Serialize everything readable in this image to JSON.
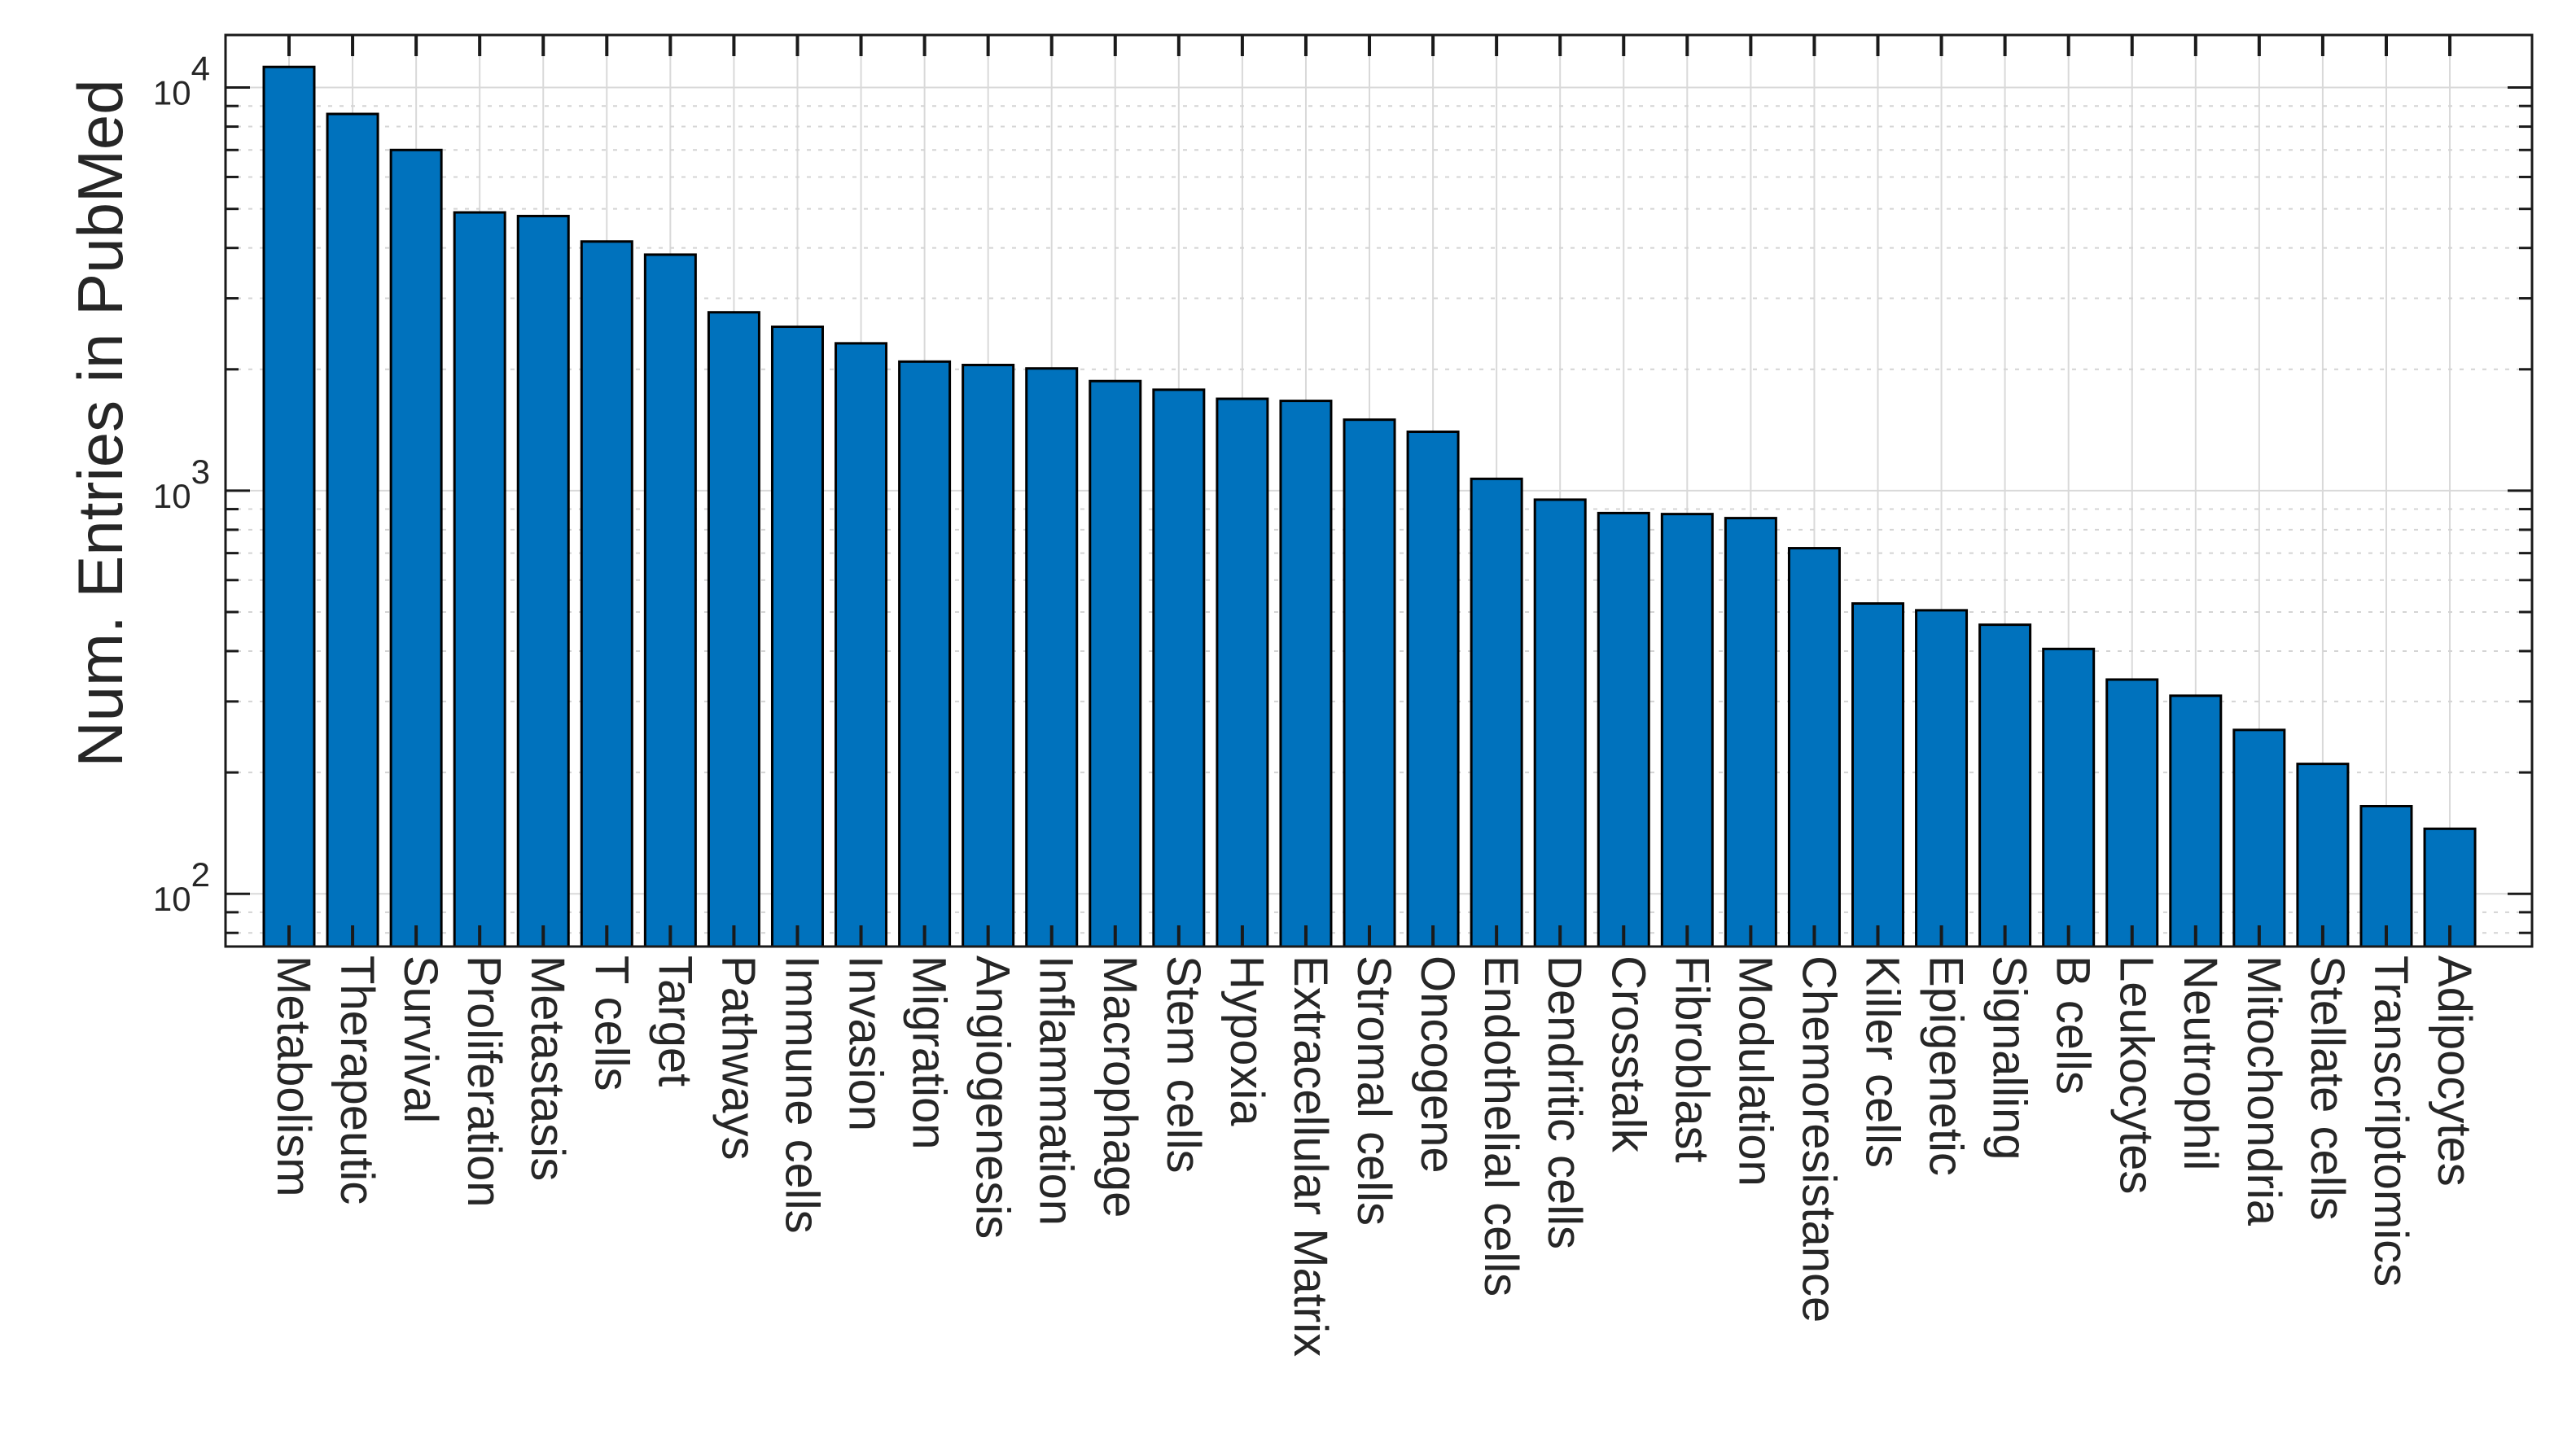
{
  "chart_data": {
    "type": "bar",
    "title": "",
    "xlabel": "",
    "ylabel": "Num. Entries in PubMed",
    "yscale": "log",
    "ylim": [
      74,
      13500
    ],
    "grid": "on",
    "legend": "none",
    "categories": [
      "Metabolism",
      "Therapeutic",
      "Survival",
      "Proliferation",
      "Metastasis",
      "T cells",
      "Target",
      "Pathways",
      "Immune cells",
      "Invasion",
      "Migration",
      "Angiogenesis",
      "Inflammation",
      "Macrophage",
      "Stem cells",
      "Hypoxia",
      "Extracellular Matrix",
      "Stromal cells",
      "Oncogene",
      "Endothelial cells",
      "Dendritic cells",
      "Crosstalk",
      "Fibroblast",
      "Modulation",
      "Chemoresistance",
      "Killer cells",
      "Epigenetic",
      "Signalling",
      "B cells",
      "Leukocytes",
      "Neutrophil",
      "Mitochondria",
      "Stellate cells",
      "Transcriptomics",
      "Adipocytes"
    ],
    "values": [
      11250,
      8600,
      7000,
      4900,
      4800,
      4150,
      3850,
      2770,
      2550,
      2320,
      2090,
      2050,
      2010,
      1870,
      1780,
      1690,
      1670,
      1500,
      1400,
      1070,
      950,
      880,
      875,
      855,
      720,
      525,
      505,
      465,
      405,
      340,
      310,
      255,
      210,
      165,
      145
    ],
    "yticks": [
      {
        "value": 100,
        "base": "10",
        "exp": "2"
      },
      {
        "value": 1000,
        "base": "10",
        "exp": "3"
      },
      {
        "value": 10000,
        "base": "10",
        "exp": "4"
      }
    ],
    "minor_gridline_values": [
      80,
      90,
      200,
      300,
      400,
      500,
      600,
      700,
      800,
      900,
      2000,
      3000,
      4000,
      5000,
      6000,
      7000,
      8000,
      9000
    ],
    "colors": {
      "bar_fill": "#0072BD",
      "bar_edge": "#000000",
      "axis": "#1a1a1a",
      "text": "#262626",
      "grid_major": "#d9d9d9",
      "grid_minor": "#d4d4d4",
      "background": "#ffffff"
    }
  }
}
